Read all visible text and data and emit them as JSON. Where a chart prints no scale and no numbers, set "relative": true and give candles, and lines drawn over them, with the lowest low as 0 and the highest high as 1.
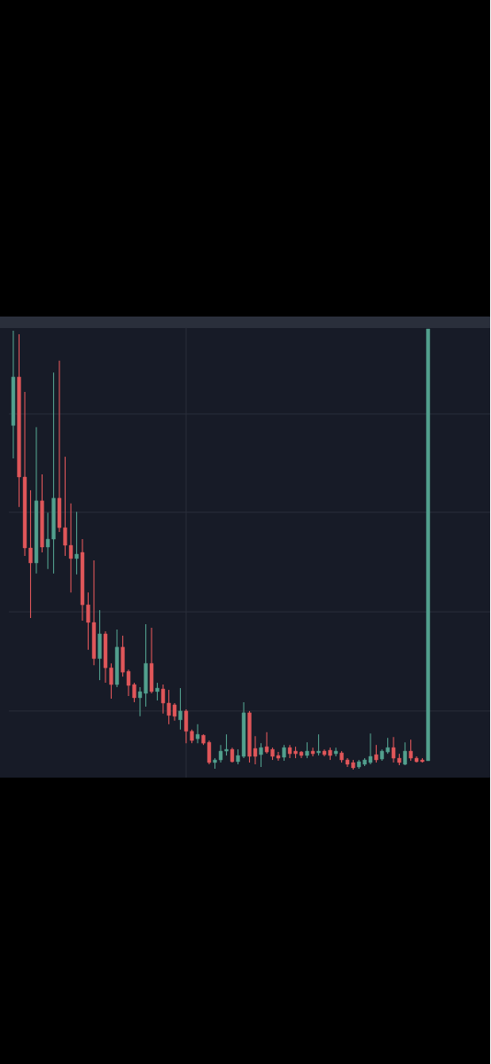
{
  "chart_data": {
    "type": "candlestick",
    "relative": true,
    "grid": true,
    "categories": [
      null,
      null,
      null,
      null,
      null,
      null,
      null,
      null,
      null,
      null,
      null,
      null,
      null,
      null,
      null,
      null,
      null,
      null,
      null,
      null,
      null,
      null,
      null,
      null,
      null,
      null,
      null,
      null,
      null,
      null,
      null,
      null,
      null,
      null,
      null,
      null,
      null,
      null,
      null,
      null,
      null,
      null,
      null,
      null,
      null,
      null,
      null,
      null,
      null,
      null,
      null,
      null,
      null,
      null,
      null,
      null,
      null,
      null,
      null,
      null,
      null,
      null,
      null,
      null,
      null,
      null,
      null,
      null,
      null,
      null,
      null,
      null,
      null
    ],
    "ohlc": [
      [
        0.781,
        0.996,
        0.706,
        0.891
      ],
      [
        0.891,
        0.988,
        0.596,
        0.664
      ],
      [
        0.664,
        0.857,
        0.485,
        0.503
      ],
      [
        0.503,
        0.634,
        0.344,
        0.469
      ],
      [
        0.469,
        0.777,
        0.445,
        0.61
      ],
      [
        0.61,
        0.67,
        0.493,
        0.505
      ],
      [
        0.505,
        0.583,
        0.455,
        0.523
      ],
      [
        0.523,
        0.901,
        0.445,
        0.616
      ],
      [
        0.616,
        0.928,
        0.539,
        0.549
      ],
      [
        0.549,
        0.71,
        0.485,
        0.509
      ],
      [
        0.509,
        0.604,
        0.402,
        0.479
      ],
      [
        0.479,
        0.585,
        0.443,
        0.489
      ],
      [
        0.493,
        0.523,
        0.338,
        0.374
      ],
      [
        0.374,
        0.402,
        0.272,
        0.334
      ],
      [
        0.334,
        0.475,
        0.237,
        0.252
      ],
      [
        0.252,
        0.362,
        0.203,
        0.308
      ],
      [
        0.308,
        0.314,
        0.197,
        0.231
      ],
      [
        0.231,
        0.241,
        0.161,
        0.193
      ],
      [
        0.193,
        0.318,
        0.187,
        0.278
      ],
      [
        0.278,
        0.304,
        0.211,
        0.221
      ],
      [
        0.223,
        0.227,
        0.167,
        0.191
      ],
      [
        0.193,
        0.197,
        0.153,
        0.163
      ],
      [
        0.163,
        0.187,
        0.121,
        0.177
      ],
      [
        0.173,
        0.33,
        0.143,
        0.241
      ],
      [
        0.241,
        0.322,
        0.173,
        0.177
      ],
      [
        0.177,
        0.197,
        0.157,
        0.185
      ],
      [
        0.183,
        0.193,
        0.127,
        0.151
      ],
      [
        0.151,
        0.181,
        0.103,
        0.123
      ],
      [
        0.147,
        0.151,
        0.111,
        0.121
      ],
      [
        0.113,
        0.185,
        0.091,
        0.133
      ],
      [
        0.133,
        0.137,
        0.06,
        0.087
      ],
      [
        0.087,
        0.091,
        0.06,
        0.066
      ],
      [
        0.07,
        0.103,
        0.06,
        0.08
      ],
      [
        0.078,
        0.08,
        0.056,
        0.06
      ],
      [
        0.062,
        0.066,
        0.012,
        0.016
      ],
      [
        0.016,
        0.026,
        0.002,
        0.022
      ],
      [
        0.022,
        0.056,
        0.016,
        0.042
      ],
      [
        0.042,
        0.08,
        0.032,
        0.046
      ],
      [
        0.046,
        0.05,
        0.016,
        0.018
      ],
      [
        0.018,
        0.046,
        0.012,
        0.032
      ],
      [
        0.03,
        0.153,
        0.026,
        0.129
      ],
      [
        0.129,
        0.133,
        0.016,
        0.03
      ],
      [
        0.048,
        0.076,
        0.012,
        0.03
      ],
      [
        0.034,
        0.06,
        0.006,
        0.05
      ],
      [
        0.052,
        0.085,
        0.036,
        0.04
      ],
      [
        0.046,
        0.05,
        0.022,
        0.03
      ],
      [
        0.032,
        0.04,
        0.02,
        0.026
      ],
      [
        0.028,
        0.056,
        0.02,
        0.05
      ],
      [
        0.05,
        0.056,
        0.026,
        0.036
      ],
      [
        0.042,
        0.052,
        0.026,
        0.036
      ],
      [
        0.04,
        0.042,
        0.026,
        0.032
      ],
      [
        0.032,
        0.062,
        0.026,
        0.042
      ],
      [
        0.042,
        0.05,
        0.03,
        0.036
      ],
      [
        0.038,
        0.08,
        0.032,
        0.042
      ],
      [
        0.042,
        0.046,
        0.03,
        0.034
      ],
      [
        0.044,
        0.05,
        0.022,
        0.032
      ],
      [
        0.036,
        0.05,
        0.03,
        0.042
      ],
      [
        0.038,
        0.042,
        0.016,
        0.022
      ],
      [
        0.022,
        0.026,
        0.006,
        0.012
      ],
      [
        0.016,
        0.022,
        0,
        0.004
      ],
      [
        0.006,
        0.022,
        0.002,
        0.018
      ],
      [
        0.012,
        0.026,
        0.008,
        0.022
      ],
      [
        0.016,
        0.082,
        0.012,
        0.03
      ],
      [
        0.034,
        0.056,
        0.016,
        0.022
      ],
      [
        0.024,
        0.046,
        0.02,
        0.042
      ],
      [
        0.04,
        0.072,
        0.036,
        0.05
      ],
      [
        0.05,
        0.074,
        0.016,
        0.026
      ],
      [
        0.026,
        0.036,
        0.01,
        0.016
      ],
      [
        0.012,
        0.062,
        0.01,
        0.042
      ],
      [
        0.042,
        0.068,
        0.02,
        0.026
      ],
      [
        0.026,
        0.03,
        0.016,
        0.018
      ],
      [
        0.022,
        0.026,
        0.016,
        0.018
      ],
      [
        0.02,
        1,
        0.02,
        1
      ]
    ],
    "colors": [
      "#52a08e",
      "#e0575a",
      "#e0575a",
      "#e0575a",
      "#52a08e",
      "#e0575a",
      "#52a08e",
      "#52a08e",
      "#e0575a",
      "#e0575a",
      "#e0575a",
      "#52a08e",
      "#e0575a",
      "#e0575a",
      "#e0575a",
      "#52a08e",
      "#e0575a",
      "#e0575a",
      "#52a08e",
      "#e0575a",
      "#e0575a",
      "#e0575a",
      "#52a08e",
      "#52a08e",
      "#e0575a",
      "#52a08e",
      "#e0575a",
      "#e0575a",
      "#e0575a",
      "#52a08e",
      "#e0575a",
      "#e0575a",
      "#52a08e",
      "#e0575a",
      "#e0575a",
      "#52a08e",
      "#52a08e",
      "#52a08e",
      "#e0575a",
      "#52a08e",
      "#52a08e",
      "#e0575a",
      "#e0575a",
      "#52a08e",
      "#e0575a",
      "#e0575a",
      "#e0575a",
      "#52a08e",
      "#e0575a",
      "#e0575a",
      "#e0575a",
      "#52a08e",
      "#e0575a",
      "#52a08e",
      "#e0575a",
      "#e0575a",
      "#52a08e",
      "#e0575a",
      "#e0575a",
      "#e0575a",
      "#52a08e",
      "#52a08e",
      "#52a08e",
      "#e0575a",
      "#52a08e",
      "#52a08e",
      "#e0575a",
      "#e0575a",
      "#52a08e",
      "#e0575a",
      "#e0575a",
      "#e0575a",
      "#52a08e"
    ]
  }
}
